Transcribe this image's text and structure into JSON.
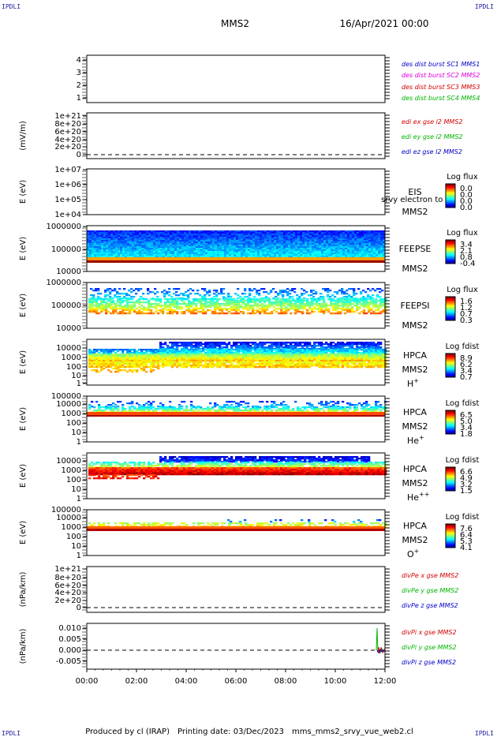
{
  "corner_labels": {
    "top_left": "IPDLI",
    "top_right": "IPDLI",
    "bottom_left": "IPDLI",
    "bottom_right": "IPDLI"
  },
  "header": {
    "spacecraft": "MMS2",
    "date": "16/Apr/2021 00:00"
  },
  "footer": {
    "producer": "Produced by cl (IRAP)",
    "printing": "Printing date: 03/Dec/2023",
    "file": "mms_mms2_srvy_vue_web2.cl"
  },
  "colors": {
    "red": "#d40000",
    "green": "#00b400",
    "blue": "#0000c8",
    "magenta": "#e000e0"
  },
  "chart_data": {
    "type": "line",
    "time_axis": {
      "start": "00:00",
      "end": "12:00",
      "ticks": [
        "00:00",
        "02:00",
        "04:00",
        "06:00",
        "08:00",
        "10:00",
        "12:00"
      ]
    },
    "panels": [
      {
        "id": "dist",
        "ylabel": "",
        "yticks": [
          "1",
          "2",
          "3",
          "4"
        ],
        "legend": [
          {
            "text": "des dist burst SC1 MMS1",
            "color": "#0000c8"
          },
          {
            "text": "des dist burst SC2 MMS2",
            "color": "#e000e0"
          },
          {
            "text": "des dist burst SC3 MMS3",
            "color": "#d40000"
          },
          {
            "text": "des dist burst SC4 MMS4",
            "color": "#00b400"
          }
        ]
      },
      {
        "id": "edi",
        "ylabel": "(mV/m)",
        "yticks": [
          "0",
          "2e+20",
          "4e+20",
          "6e+20",
          "8e+20",
          "1e+21"
        ],
        "legend": [
          {
            "text": "edi ex gse l2 MMS2",
            "color": "#d40000"
          },
          {
            "text": "edi ey gse l2 MMS2",
            "color": "#00b400"
          },
          {
            "text": "edi ez gse l2 MMS2",
            "color": "#0000c8"
          }
        ]
      },
      {
        "id": "eis",
        "ylabel": "E (eV)",
        "yticks": [
          "1e+04",
          "1e+05",
          "1e+06",
          "1e+07"
        ],
        "instrument": [
          "EIS",
          "MMS2"
        ],
        "note": "srvy electron to",
        "cbar": {
          "title": "Log flux",
          "ticks": [
            "0.0",
            "0.0",
            "0.0",
            "0.0"
          ]
        }
      },
      {
        "id": "feepse",
        "ylabel": "E (eV)",
        "yticks": [
          "10000",
          "100000",
          "1000000"
        ],
        "instrument": [
          "FEEPSE",
          "MMS2"
        ],
        "cbar": {
          "title": "Log flux",
          "ticks": [
            "3.4",
            "2.1",
            "0.8",
            "-0.4"
          ]
        }
      },
      {
        "id": "feepsi",
        "ylabel": "E (eV)",
        "yticks": [
          "10000",
          "100000",
          "1000000"
        ],
        "instrument": [
          "FEEPSI",
          "MMS2"
        ],
        "cbar": {
          "title": "Log flux",
          "ticks": [
            "1.6",
            "1.2",
            "0.7",
            "0.3"
          ]
        }
      },
      {
        "id": "hpca_h",
        "ylabel": "E (eV)",
        "yticks": [
          "1",
          "10",
          "100",
          "1000",
          "10000"
        ],
        "instrument": [
          "HPCA",
          "MMS2"
        ],
        "species": {
          "base": "H",
          "sup": "+"
        },
        "cbar": {
          "title": "Log fdist",
          "ticks": [
            "8.9",
            "6.2",
            "3.4",
            "0.7"
          ]
        }
      },
      {
        "id": "hpca_he1",
        "ylabel": "E (eV)",
        "yticks": [
          "1",
          "10",
          "100",
          "1000",
          "10000",
          "100000"
        ],
        "instrument": [
          "HPCA",
          "MMS2"
        ],
        "species": {
          "base": "He",
          "sup": "+"
        },
        "cbar": {
          "title": "Log fdist",
          "ticks": [
            "6.5",
            "5.0",
            "3.4",
            "1.8"
          ]
        }
      },
      {
        "id": "hpca_he2",
        "ylabel": "E (eV)",
        "yticks": [
          "1",
          "10",
          "100",
          "1000",
          "10000"
        ],
        "instrument": [
          "HPCA",
          "MMS2"
        ],
        "species": {
          "base": "He",
          "sup": "++"
        },
        "cbar": {
          "title": "Log fdist",
          "ticks": [
            "6.6",
            "4.9",
            "3.2",
            "1.5"
          ]
        }
      },
      {
        "id": "hpca_o",
        "ylabel": "E (eV)",
        "yticks": [
          "1",
          "10",
          "100",
          "1000",
          "10000",
          "100000"
        ],
        "instrument": [
          "HPCA",
          "MMS2"
        ],
        "species": {
          "base": "O",
          "sup": "+"
        },
        "cbar": {
          "title": "Log fdist",
          "ticks": [
            "7.6",
            "6.4",
            "5.3",
            "4.1"
          ]
        }
      },
      {
        "id": "divpe",
        "ylabel": "(nPa/km)",
        "yticks": [
          "0",
          "2e+20",
          "4e+20",
          "6e+20",
          "8e+20",
          "1e+21"
        ],
        "legend": [
          {
            "text": "divPe x gse MMS2",
            "color": "#d40000"
          },
          {
            "text": "divPe y gse MMS2",
            "color": "#00b400"
          },
          {
            "text": "divPe z gse MMS2",
            "color": "#0000c8"
          }
        ]
      },
      {
        "id": "divpi",
        "ylabel": "(nPa/km)",
        "yticks": [
          "-0.005",
          "0.000",
          "0.005",
          "0.010"
        ],
        "legend": [
          {
            "text": "divPi x gse MMS2",
            "color": "#d40000"
          },
          {
            "text": "divPi y gse MMS2",
            "color": "#00b400"
          },
          {
            "text": "divPi z gse MMS2",
            "color": "#0000c8"
          }
        ]
      }
    ]
  }
}
